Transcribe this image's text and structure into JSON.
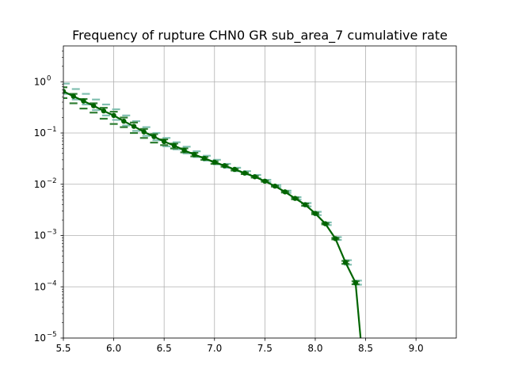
{
  "chart_data": {
    "type": "line",
    "title": "Frequency of rupture CHN0 GR sub_area_7 cumulative rate",
    "xlabel": "",
    "ylabel": "",
    "xlim": [
      5.5,
      9.4
    ],
    "ylim": [
      1e-05,
      5.0
    ],
    "yscale": "log",
    "grid": true,
    "x_ticks": [
      5.5,
      6.0,
      6.5,
      7.0,
      7.5,
      8.0,
      8.5,
      9.0
    ],
    "x_tick_labels": [
      "5.5",
      "6.0",
      "6.5",
      "7.0",
      "7.5",
      "8.0",
      "8.5",
      "9.0"
    ],
    "y_ticks": [
      {
        "value": 1e-05,
        "base": "10",
        "exp": "−5"
      },
      {
        "value": 0.0001,
        "base": "10",
        "exp": "−4"
      },
      {
        "value": 0.001,
        "base": "10",
        "exp": "−3"
      },
      {
        "value": 0.01,
        "base": "10",
        "exp": "−2"
      },
      {
        "value": 0.1,
        "base": "10",
        "exp": "−1"
      },
      {
        "value": 1,
        "base": "10",
        "exp": "0"
      }
    ],
    "series": [
      {
        "color": "#006400",
        "x": [
          5.5,
          5.6,
          5.7,
          5.8,
          5.9,
          6.0,
          6.1,
          6.2,
          6.3,
          6.4,
          6.5,
          6.6,
          6.7,
          6.8,
          6.9,
          7.0,
          7.1,
          7.2,
          7.3,
          7.4,
          7.5,
          7.6,
          7.7,
          7.8,
          7.9,
          8.0,
          8.1,
          8.2,
          8.3,
          8.4,
          8.45
        ],
        "y": [
          0.65,
          0.52,
          0.42,
          0.34,
          0.27,
          0.22,
          0.17,
          0.135,
          0.105,
          0.085,
          0.068,
          0.057,
          0.046,
          0.038,
          0.032,
          0.027,
          0.023,
          0.0195,
          0.0165,
          0.014,
          0.0115,
          0.0092,
          0.0071,
          0.0053,
          0.004,
          0.0027,
          0.0017,
          0.00087,
          0.0003,
          0.00012,
          1e-05
        ]
      }
    ],
    "error_markers": {
      "dark_color": "#2e7d32",
      "light_color": "#80bfb0",
      "x": [
        5.5,
        5.6,
        5.7,
        5.8,
        5.9,
        6.0,
        6.1,
        6.2,
        6.3,
        6.4,
        6.5,
        6.6,
        6.7,
        6.8,
        6.9,
        7.0,
        7.1,
        7.2,
        7.3,
        7.4,
        7.5,
        7.6,
        7.7,
        7.8,
        7.9,
        8.0,
        8.1,
        8.2,
        8.3,
        8.4
      ],
      "dark_y": [
        [
          0.78,
          0.48
        ],
        [
          0.58,
          0.38
        ],
        [
          0.46,
          0.3
        ],
        [
          0.38,
          0.25
        ],
        [
          0.31,
          0.19
        ],
        [
          0.26,
          0.15
        ],
        [
          0.2,
          0.13
        ],
        [
          0.16,
          0.1
        ],
        [
          0.12,
          0.08
        ],
        [
          0.095,
          0.065
        ],
        [
          0.075,
          0.058
        ],
        [
          0.062,
          0.05
        ],
        [
          0.05,
          0.042
        ],
        [
          0.041,
          0.035
        ],
        [
          0.034,
          0.03
        ],
        [
          0.028,
          0.025
        ],
        [
          0.024,
          0.022
        ],
        [
          0.02,
          0.0185
        ],
        [
          0.017,
          0.0158
        ],
        [
          0.0145,
          0.0135
        ],
        [
          0.0118,
          0.0112
        ],
        [
          0.0094,
          0.009
        ],
        [
          0.0073,
          0.0069
        ],
        [
          0.0055,
          0.0051
        ],
        [
          0.0042,
          0.0038
        ],
        [
          0.0028,
          0.0026
        ],
        [
          0.00175,
          0.00165
        ],
        [
          0.0009,
          0.00084
        ],
        [
          0.00032,
          0.00028
        ],
        [
          0.000128,
          0.000112
        ]
      ],
      "light_y": [
        [
          0.92,
          0.58
        ],
        [
          0.72,
          0.45
        ],
        [
          0.58,
          0.36
        ],
        [
          0.45,
          0.28
        ],
        [
          0.36,
          0.22
        ],
        [
          0.29,
          0.18
        ],
        [
          0.22,
          0.14
        ],
        [
          0.17,
          0.11
        ],
        [
          0.13,
          0.088
        ],
        [
          0.1,
          0.072
        ],
        [
          0.08,
          0.055
        ],
        [
          0.066,
          0.048
        ],
        [
          0.054,
          0.04
        ],
        [
          0.044,
          0.034
        ],
        [
          0.036,
          0.029
        ],
        [
          0.03,
          0.0245
        ],
        [
          0.025,
          0.021
        ],
        [
          0.021,
          0.018
        ],
        [
          0.018,
          0.0155
        ],
        [
          0.0152,
          0.0132
        ],
        [
          0.0122,
          0.011
        ],
        [
          0.0097,
          0.0088
        ],
        [
          0.0075,
          0.0068
        ],
        [
          0.0056,
          0.005
        ],
        [
          0.0043,
          0.0037
        ],
        [
          0.0029,
          0.0025
        ],
        [
          0.0018,
          0.0016
        ],
        [
          0.00093,
          0.00082
        ],
        [
          0.00033,
          0.00027
        ],
        [
          0.000132,
          0.00011
        ]
      ]
    }
  }
}
